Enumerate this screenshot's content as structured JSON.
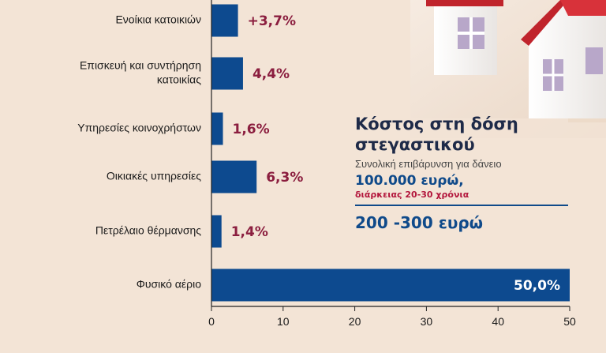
{
  "chart_data": {
    "type": "bar",
    "orientation": "horizontal",
    "categories": [
      [
        "Ενοίκια κατοικιών"
      ],
      [
        "Επισκευή και συντήρηση",
        "κατοικίας"
      ],
      [
        "Υπηρεσίες κοινοχρήστων"
      ],
      [
        "Οικιακές υπηρεσίες"
      ],
      [
        "Πετρέλαιο θέρμανσης"
      ],
      [
        "Φυσικό αέριο"
      ]
    ],
    "values": [
      3.7,
      4.4,
      1.6,
      6.3,
      1.4,
      50.0
    ],
    "value_labels": [
      "+3,7%",
      "4,4%",
      "1,6%",
      "6,3%",
      "1,4%",
      "50,0%"
    ],
    "xlim": [
      0,
      50
    ],
    "xticks": [
      "0",
      "10",
      "20",
      "30",
      "40",
      "50"
    ],
    "bar_color": "#0d4a8f",
    "value_label_color": "#8b1e3f",
    "grid": false
  },
  "info_box": {
    "title_line1": "Κόστος στη δόση",
    "title_line2": "στεγαστικού",
    "subtitle": "Συνολική επιβάρυνση για δάνειο",
    "amount": "100.000 ευρώ,",
    "duration": "διάρκειας 20-30 χρόνια",
    "range": "200 -300 ευρώ"
  },
  "colors": {
    "background": "#f3e4d6",
    "title": "#1e2a48",
    "accent_blue": "#0f4a8a",
    "accent_red": "#b3163c"
  },
  "illustration": "house-icon"
}
